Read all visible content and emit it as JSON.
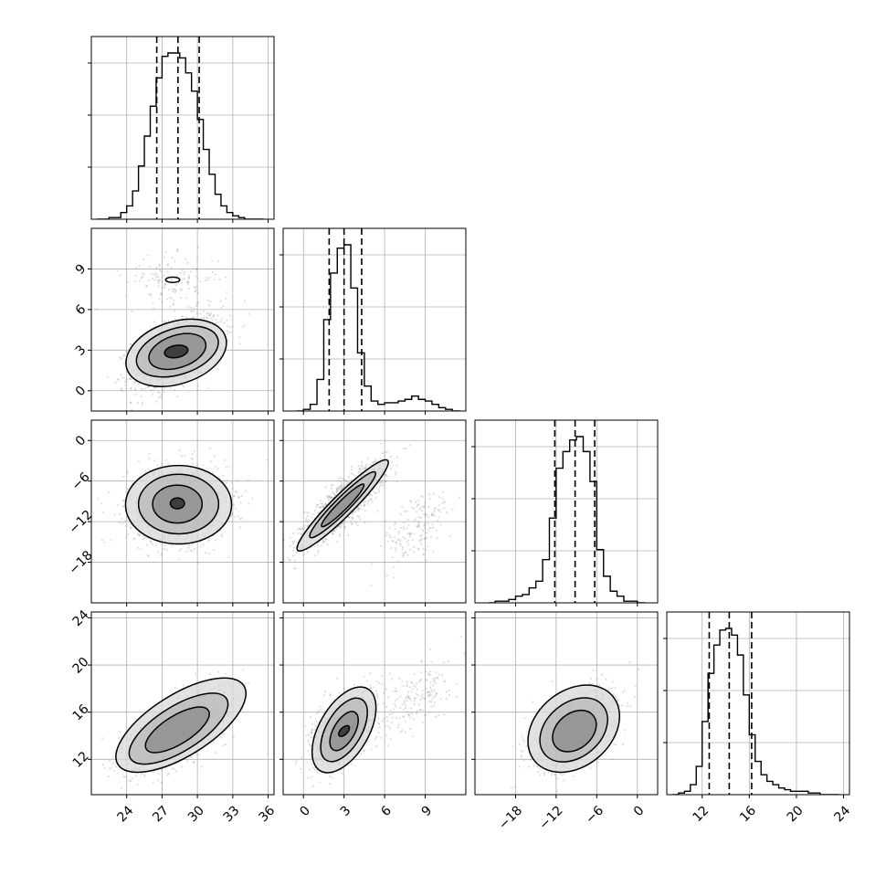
{
  "chart_data": {
    "type": "corner",
    "grid": true,
    "parameters": [
      {
        "range": [
          21,
          36.5
        ],
        "ticks": [
          24,
          27,
          30,
          33,
          36
        ],
        "tick_labels": [
          "24",
          "27",
          "30",
          "33",
          "36"
        ],
        "quantiles": [
          26.55,
          28.35,
          30.15
        ],
        "hist_peak": [
          1.0
        ],
        "hist_x": [
          21.5,
          22.5,
          23.5,
          24.0,
          24.5,
          25.0,
          25.5,
          26.0,
          26.5,
          27.0,
          27.5,
          28.0,
          28.5,
          29.0,
          29.5,
          30.0,
          30.5,
          31.0,
          31.5,
          32.0,
          32.5,
          33.0,
          33.5,
          34.0,
          35.0
        ],
        "hist_y": [
          0.0,
          0.01,
          0.04,
          0.08,
          0.17,
          0.32,
          0.5,
          0.68,
          0.85,
          0.98,
          1.0,
          1.0,
          0.97,
          0.88,
          0.77,
          0.6,
          0.42,
          0.27,
          0.15,
          0.08,
          0.04,
          0.02,
          0.01,
          0.0,
          0.0
        ]
      },
      {
        "range": [
          -1.5,
          12
        ],
        "ticks": [
          0,
          3,
          6,
          9
        ],
        "tick_labels": [
          "0",
          "3",
          "6",
          "9"
        ],
        "quantiles": [
          1.9,
          3.0,
          4.3
        ],
        "hist_x": [
          -0.5,
          0.0,
          0.5,
          1.0,
          1.5,
          2.0,
          2.5,
          3.0,
          3.5,
          4.0,
          4.5,
          5.0,
          5.5,
          6.0,
          6.5,
          7.0,
          7.5,
          8.0,
          8.5,
          9.0,
          9.5,
          10.0,
          10.5,
          11.0
        ],
        "hist_y": [
          0.0,
          0.01,
          0.04,
          0.19,
          0.55,
          0.83,
          0.98,
          1.0,
          0.74,
          0.35,
          0.15,
          0.06,
          0.04,
          0.05,
          0.05,
          0.06,
          0.07,
          0.09,
          0.07,
          0.06,
          0.04,
          0.02,
          0.01,
          0.0
        ]
      },
      {
        "range": [
          -24,
          3
        ],
        "ticks": [
          -18,
          -12,
          -6,
          0
        ],
        "tick_labels": [
          "−18",
          "−12",
          "−6",
          "0"
        ],
        "quantiles": [
          -12.2,
          -9.2,
          -6.3
        ],
        "hist_x": [
          -22.0,
          -21.0,
          -20.0,
          -19.0,
          -18.0,
          -17.0,
          -16.0,
          -15.0,
          -14.0,
          -13.0,
          -12.0,
          -11.0,
          -10.0,
          -9.0,
          -8.0,
          -7.0,
          -6.0,
          -5.0,
          -4.0,
          -3.0,
          -2.0,
          -1.0,
          0.0
        ],
        "hist_y": [
          0.0,
          0.01,
          0.01,
          0.02,
          0.04,
          0.05,
          0.09,
          0.13,
          0.26,
          0.51,
          0.81,
          0.91,
          0.98,
          1.0,
          0.91,
          0.73,
          0.32,
          0.16,
          0.07,
          0.04,
          0.01,
          0.01,
          0.0
        ]
      },
      {
        "range": [
          9,
          24.5
        ],
        "ticks": [
          12,
          16,
          20,
          24
        ],
        "tick_labels": [
          "12",
          "16",
          "20",
          "24"
        ],
        "quantiles": [
          12.6,
          14.3,
          16.2
        ],
        "hist_x": [
          9.5,
          10.0,
          10.5,
          11.0,
          11.5,
          12.0,
          12.5,
          13.0,
          13.5,
          14.0,
          14.5,
          15.0,
          15.5,
          16.0,
          16.5,
          17.0,
          17.5,
          18.0,
          18.5,
          19.0,
          19.5,
          20.0,
          21.0,
          22.0,
          23.0
        ],
        "hist_y": [
          0.0,
          0.01,
          0.02,
          0.06,
          0.17,
          0.44,
          0.73,
          0.9,
          0.99,
          1.0,
          0.96,
          0.84,
          0.6,
          0.36,
          0.2,
          0.12,
          0.08,
          0.06,
          0.04,
          0.03,
          0.02,
          0.02,
          0.01,
          0.0,
          0.0
        ]
      }
    ],
    "pairs": [
      {
        "row": 1,
        "col": 0,
        "modes": [
          {
            "mean": [
              28.3,
              2.9
            ],
            "sd": [
              1.9,
              1.4
            ],
            "rho": 0.5,
            "weight": 0.9
          },
          {
            "mean": [
              27.9,
              8.2
            ],
            "sd": [
              2.0,
              0.9
            ],
            "rho": 0.1,
            "weight": 0.1
          }
        ],
        "contours": [
          {
            "center": [
              28.2,
              2.8
            ],
            "a": 4.4,
            "b": 2.3,
            "angle": 18
          },
          {
            "center": [
              28.3,
              2.9
            ],
            "a": 3.6,
            "b": 1.7,
            "angle": 18
          },
          {
            "center": [
              28.3,
              2.9
            ],
            "a": 2.5,
            "b": 1.2,
            "angle": 18
          },
          {
            "center": [
              28.2,
              2.9
            ],
            "a": 1.0,
            "b": 0.45,
            "angle": 10
          },
          {
            "center": [
              27.9,
              8.2
            ],
            "a": 0.6,
            "b": 0.2,
            "angle": 0
          }
        ]
      },
      {
        "row": 2,
        "col": 0,
        "modes": [
          {
            "mean": [
              28.3,
              -9.5
            ],
            "sd": [
              2.1,
              2.8
            ],
            "rho": 0.05,
            "weight": 1.0
          }
        ],
        "contours": [
          {
            "center": [
              28.4,
              -9.5
            ],
            "a": 4.5,
            "b": 5.8,
            "angle": 0
          },
          {
            "center": [
              28.4,
              -9.4
            ],
            "a": 3.4,
            "b": 4.4,
            "angle": 0
          },
          {
            "center": [
              28.3,
              -9.4
            ],
            "a": 2.1,
            "b": 2.8,
            "angle": 0
          },
          {
            "center": [
              28.3,
              -9.3
            ],
            "a": 0.6,
            "b": 0.8,
            "angle": 0
          }
        ]
      },
      {
        "row": 2,
        "col": 1,
        "modes": [
          {
            "mean": [
              3.0,
              -9.3
            ],
            "sd": [
              1.5,
              2.9
            ],
            "rho": 0.85,
            "weight": 0.88
          },
          {
            "mean": [
              8.4,
              -13.0
            ],
            "sd": [
              1.3,
              2.8
            ],
            "rho": 0.5,
            "weight": 0.12
          }
        ],
        "contours": [
          {
            "center": [
              2.9,
              -9.6
            ],
            "a": 4.7,
            "b": 1.6,
            "angle": 45
          },
          {
            "center": [
              2.9,
              -9.5
            ],
            "a": 3.4,
            "b": 1.1,
            "angle": 45
          },
          {
            "center": [
              2.9,
              -9.6
            ],
            "a": 2.2,
            "b": 0.7,
            "angle": 45
          }
        ]
      },
      {
        "row": 3,
        "col": 0,
        "modes": [
          {
            "mean": [
              28.4,
              14.5
            ],
            "sd": [
              2.0,
              1.6
            ],
            "rho": 0.65,
            "weight": 1.0
          }
        ],
        "contours": [
          {
            "center": [
              28.6,
              14.9
            ],
            "a": 6.3,
            "b": 2.6,
            "angle": 32
          },
          {
            "center": [
              28.4,
              14.6
            ],
            "a": 4.8,
            "b": 1.9,
            "angle": 32
          },
          {
            "center": [
              28.3,
              14.5
            ],
            "a": 3.1,
            "b": 1.2,
            "angle": 32
          }
        ]
      },
      {
        "row": 3,
        "col": 1,
        "modes": [
          {
            "mean": [
              3.0,
              14.5
            ],
            "sd": [
              1.2,
              1.5
            ],
            "rho": 0.55,
            "weight": 0.88
          },
          {
            "mean": [
              8.5,
              17.5
            ],
            "sd": [
              1.2,
              1.7
            ],
            "rho": 0.55,
            "weight": 0.12
          }
        ],
        "contours": [
          {
            "center": [
              3.0,
              14.5
            ],
            "a": 3.5,
            "b": 2.1,
            "angle": 60
          },
          {
            "center": [
              3.0,
              14.5
            ],
            "a": 2.6,
            "b": 1.5,
            "angle": 60
          },
          {
            "center": [
              3.0,
              14.4
            ],
            "a": 1.6,
            "b": 0.9,
            "angle": 60
          },
          {
            "center": [
              3.0,
              14.4
            ],
            "a": 0.5,
            "b": 0.3,
            "angle": 45
          }
        ]
      },
      {
        "row": 3,
        "col": 2,
        "modes": [
          {
            "mean": [
              -9.2,
              14.5
            ],
            "sd": [
              2.9,
              1.6
            ],
            "rho": 0.55,
            "weight": 1.0
          }
        ],
        "contours": [
          {
            "center": [
              -9.4,
              14.6
            ],
            "a": 7.5,
            "b": 3.2,
            "angle": 40
          },
          {
            "center": [
              -9.4,
              14.5
            ],
            "a": 5.6,
            "b": 2.3,
            "angle": 40
          },
          {
            "center": [
              -9.3,
              14.4
            ],
            "a": 3.6,
            "b": 1.5,
            "angle": 40
          }
        ]
      }
    ]
  }
}
